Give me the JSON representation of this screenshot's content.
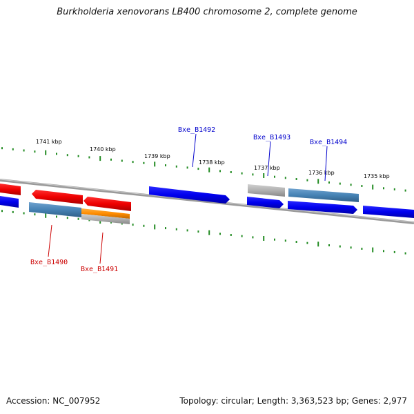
{
  "title": "Burkholderia xenovorans LB400 chromosome 2, complete genome",
  "footer": {
    "accession": "Accession: NC_007952",
    "genome_info": "Topology: circular; Length: 3,363,523 bp; Genes: 2,977"
  },
  "colors": {
    "forward_gene": "#0000ee",
    "reverse_gene": "#ee0000",
    "unknown_gene": "#b0b0b0",
    "steelblue_gene": "#4682b4",
    "orange_gene": "#ff8c00",
    "tick": "#228b22",
    "forward_label": "#0000cc",
    "reverse_label": "#cc0000"
  },
  "scale_labels": [
    "1741 kbp",
    "1740 kbp",
    "1739 kbp",
    "1738 kbp",
    "1737 kbp",
    "1736 kbp",
    "1735 kbp"
  ],
  "gene_labels": {
    "top": [
      "Bxe_B1492",
      "Bxe_B1493",
      "Bxe_B1494"
    ],
    "bottom": [
      "Bxe_B1490",
      "Bxe_B1491"
    ]
  }
}
